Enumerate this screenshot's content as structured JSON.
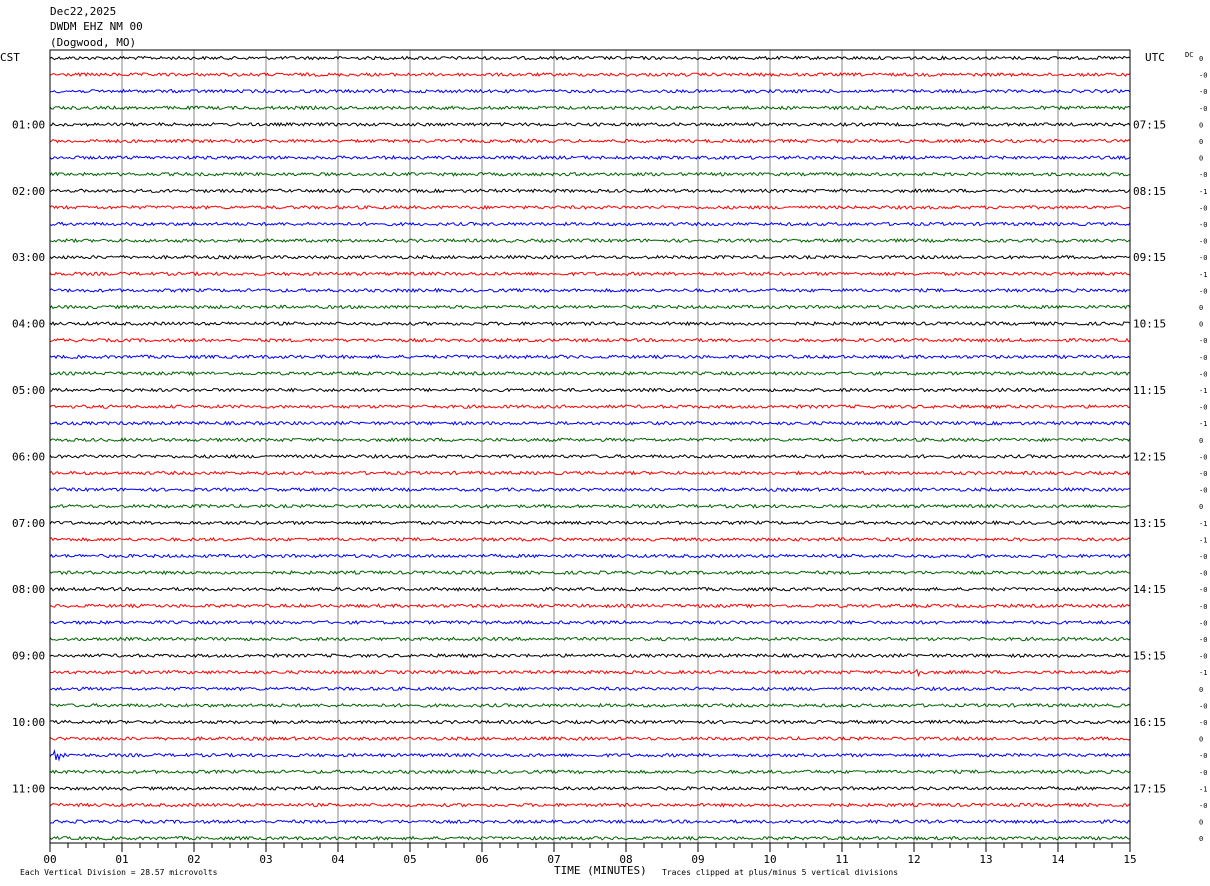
{
  "header": {
    "date": "Dec22,2025",
    "station": "DWDM EHZ NM 00",
    "location": "(Dogwood, MO)"
  },
  "left_timezone": "CST",
  "right_timezone": "UTC",
  "dc_label": "DC",
  "xaxis_title": "TIME (MINUTES)",
  "footer_left": "Each Vertical Division =   28.57 microvolts",
  "footer_right": "Traces clipped at plus/minus 5 vertical divisions",
  "colors": {
    "trace_cycle": [
      "#000000",
      "#ff0000",
      "#0000ff",
      "#006400"
    ],
    "grid": "#888888",
    "frame": "#000000",
    "background": "#ffffff"
  },
  "chart_data": {
    "type": "line",
    "subtype": "helicorder",
    "title": "",
    "xlabel": "TIME (MINUTES)",
    "ylabel": "",
    "xlim": [
      0,
      15
    ],
    "x_ticks": [
      "00",
      "01",
      "02",
      "03",
      "04",
      "05",
      "06",
      "07",
      "08",
      "09",
      "10",
      "11",
      "12",
      "13",
      "14",
      "15"
    ],
    "minutes_per_line": 15,
    "trace_count": 48,
    "hour_labels_left": [
      "01:00",
      "02:00",
      "03:00",
      "04:00",
      "05:00",
      "06:00",
      "07:00",
      "08:00",
      "09:00",
      "10:00",
      "11:00"
    ],
    "hour_labels_right": [
      "07:15",
      "08:15",
      "09:15",
      "10:15",
      "11:15",
      "12:15",
      "13:15",
      "14:15",
      "15:15",
      "16:15",
      "17:15"
    ],
    "dc_offsets": [
      "0",
      "-0",
      "-0",
      "-0",
      "0",
      "0",
      "0",
      "-0",
      "-1",
      "-0",
      "-0",
      "-0",
      "-0",
      "-1",
      "-0",
      "0",
      "0",
      "-0",
      "-0",
      "-0",
      "-1",
      "-0",
      "-1",
      "0",
      "-0",
      "-0",
      "-0",
      "0",
      "-1",
      "-1",
      "-0",
      "-0",
      "-0",
      "-0",
      "-0",
      "-0",
      "-0",
      "-1",
      "0",
      "-0",
      "-0",
      "0",
      "-0",
      "-0",
      "-1",
      "-0",
      "0",
      "0"
    ],
    "grid": true,
    "legend": "none",
    "events": [
      {
        "trace": 37,
        "minute": 12.0,
        "note": "small burst"
      },
      {
        "trace": 42,
        "minute": 0.1,
        "note": "spike"
      }
    ]
  }
}
